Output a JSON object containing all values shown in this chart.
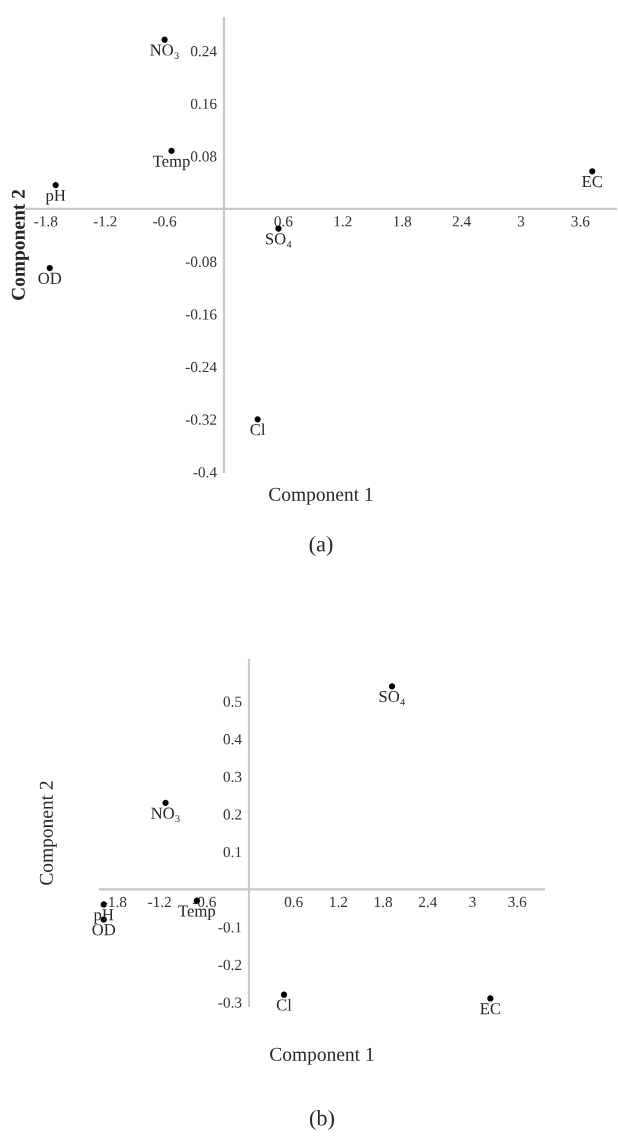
{
  "chart_data": [
    {
      "type": "scatter",
      "xlabel": "Component 1",
      "ylabel": "Component 2",
      "marker": "circle",
      "grid": false,
      "x": [
        -0.6,
        -0.53,
        -1.7,
        3.72,
        0.55,
        -1.76,
        0.34
      ],
      "values": [
        0.257,
        0.088,
        0.036,
        0.057,
        -0.03,
        -0.09,
        -0.32
      ],
      "color": "#000000",
      "xlim": [
        -2.0,
        3.96
      ],
      "ylim": [
        -0.4,
        0.29
      ],
      "xticks": [
        -1.8,
        -1.2,
        -0.6,
        0.6,
        1.2,
        1.8,
        2.4,
        3,
        3.6
      ],
      "yticks": [
        -0.4,
        -0.32,
        -0.24,
        -0.16,
        -0.08,
        0.08,
        0.16,
        0.24
      ],
      "annotations": [
        {
          "text": "NO₃",
          "x": -0.6,
          "y": 0.257
        },
        {
          "text": "Temp",
          "x": -0.53,
          "y": 0.088
        },
        {
          "text": "pH",
          "x": -1.7,
          "y": 0.036
        },
        {
          "text": "EC",
          "x": 3.72,
          "y": 0.057
        },
        {
          "text": "SO₄",
          "x": 0.55,
          "y": -0.03
        },
        {
          "text": "OD",
          "x": -1.76,
          "y": -0.09
        },
        {
          "text": "Cl",
          "x": 0.34,
          "y": -0.32
        },
        "(a)"
      ]
    },
    {
      "type": "scatter",
      "xlabel": "Component 1",
      "ylabel": "Component 2",
      "marker": "circle",
      "grid": false,
      "x": [
        1.92,
        -1.12,
        -1.95,
        -1.95,
        -0.7,
        0.47,
        3.24
      ],
      "values": [
        0.54,
        0.23,
        -0.04,
        -0.08,
        -0.03,
        -0.28,
        -0.29
      ],
      "color": "#000000",
      "xlim": [
        -2.0,
        3.96
      ],
      "ylim": [
        -0.31,
        0.61
      ],
      "xticks": [
        -1.8,
        -1.2,
        -0.6,
        0.6,
        1.2,
        1.8,
        2.4,
        3,
        3.6
      ],
      "yticks": [
        -0.3,
        -0.2,
        -0.1,
        0.1,
        0.2,
        0.3,
        0.4,
        0.5
      ],
      "annotations": [
        {
          "text": "SO₄",
          "x": 1.92,
          "y": 0.54
        },
        {
          "text": "NO₃",
          "x": -1.12,
          "y": 0.23
        },
        {
          "text": "pH",
          "x": -1.95,
          "y": -0.04
        },
        {
          "text": "OD",
          "x": -1.95,
          "y": -0.08
        },
        {
          "text": "Temp",
          "x": -0.7,
          "y": -0.03
        },
        {
          "text": "Cl",
          "x": 0.47,
          "y": -0.28
        },
        {
          "text": "EC",
          "x": 3.24,
          "y": -0.29
        },
        "(b)"
      ]
    }
  ]
}
